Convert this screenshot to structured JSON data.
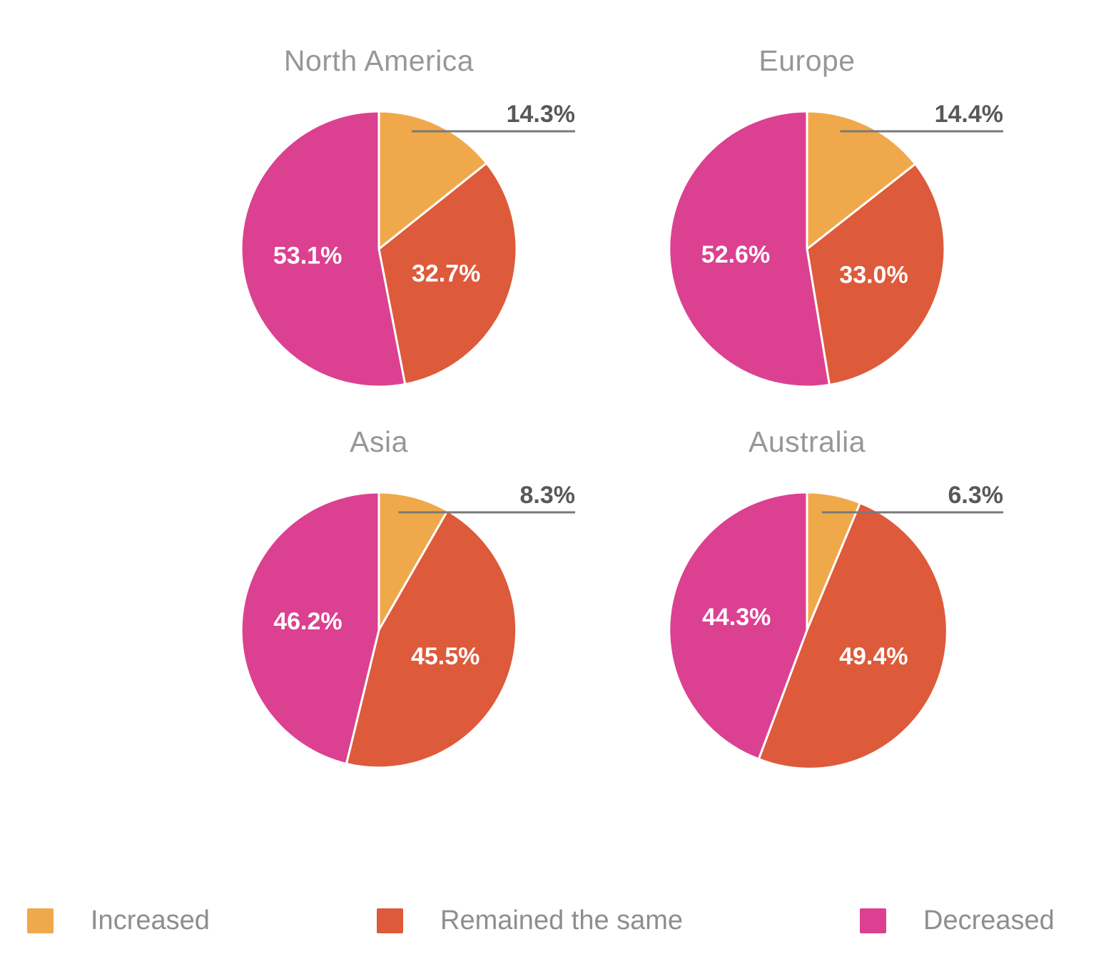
{
  "chart_data": [
    {
      "type": "pie",
      "title": "North America",
      "slices": [
        {
          "label": "Increased",
          "value": 14.3,
          "display": "14.3%",
          "label_placement": "outside"
        },
        {
          "label": "Remained the same",
          "value": 32.7,
          "display": "32.7%",
          "label_placement": "inside"
        },
        {
          "label": "Decreased",
          "value": 53.1,
          "display": "53.1%",
          "label_placement": "inside"
        }
      ],
      "start_angle": "12-oclock",
      "direction": "clockwise"
    },
    {
      "type": "pie",
      "title": "Europe",
      "slices": [
        {
          "label": "Increased",
          "value": 14.4,
          "display": "14.4%",
          "label_placement": "outside"
        },
        {
          "label": "Remained the same",
          "value": 33.0,
          "display": "33.0%",
          "label_placement": "inside"
        },
        {
          "label": "Decreased",
          "value": 52.6,
          "display": "52.6%",
          "label_placement": "inside"
        }
      ],
      "start_angle": "12-oclock",
      "direction": "clockwise"
    },
    {
      "type": "pie",
      "title": "Asia",
      "slices": [
        {
          "label": "Increased",
          "value": 8.3,
          "display": "8.3%",
          "label_placement": "outside"
        },
        {
          "label": "Remained the same",
          "value": 45.5,
          "display": "45.5%",
          "label_placement": "inside"
        },
        {
          "label": "Decreased",
          "value": 46.2,
          "display": "46.2%",
          "label_placement": "inside"
        }
      ],
      "start_angle": "12-oclock",
      "direction": "clockwise"
    },
    {
      "type": "pie",
      "title": "Australia",
      "slices": [
        {
          "label": "Increased",
          "value": 6.3,
          "display": "6.3%",
          "label_placement": "outside"
        },
        {
          "label": "Remained the same",
          "value": 49.4,
          "display": "49.4%",
          "label_placement": "inside"
        },
        {
          "label": "Decreased",
          "value": 44.3,
          "display": "44.3%",
          "label_placement": "inside"
        }
      ],
      "start_angle": "12-oclock",
      "direction": "clockwise"
    }
  ],
  "legend": {
    "position": "bottom",
    "items": [
      {
        "label": "Increased",
        "color": "#F0A94A"
      },
      {
        "label": "Remained the same",
        "color": "#DD5A3B"
      },
      {
        "label": "Decreased",
        "color": "#DB4190"
      }
    ]
  },
  "colors": {
    "increased": "#F0A94A",
    "remained_the_same": "#DD5A3B",
    "decreased": "#DB4190",
    "title_text": "#979797",
    "inside_label_text": "#FFFFFF",
    "outside_label_text": "#58585A",
    "leader_line": "#7A7A7A",
    "legend_text": "#8E8E8E",
    "background": "#FFFFFF"
  }
}
